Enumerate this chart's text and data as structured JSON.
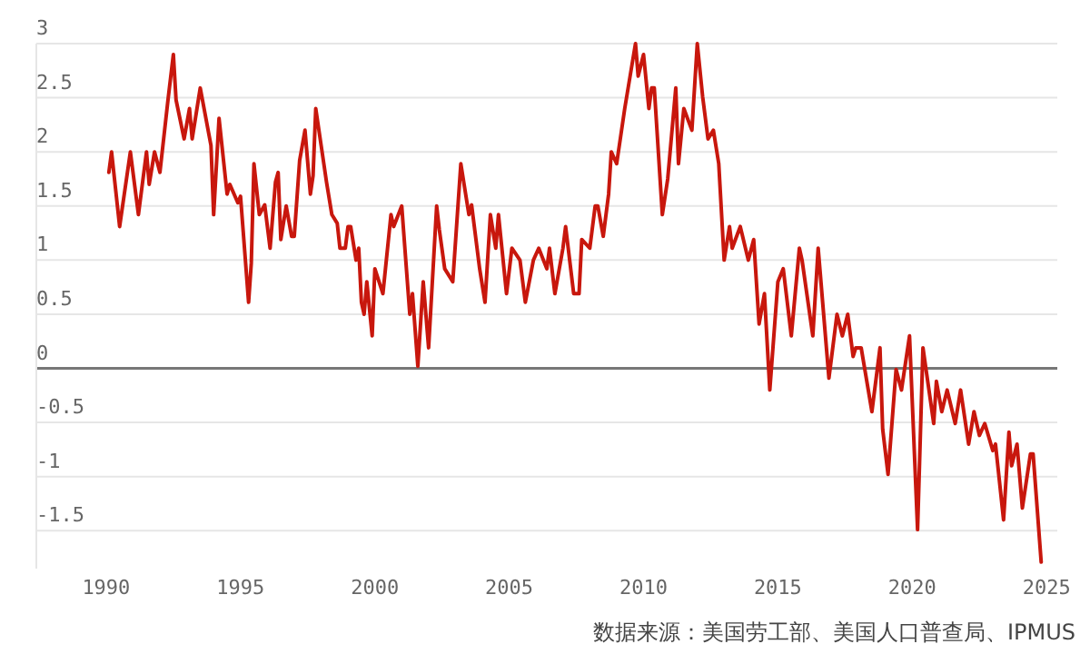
{
  "chart_data": {
    "type": "line",
    "x": [
      1990.1,
      1990.2,
      1990.5,
      1990.9,
      1991.2,
      1991.5,
      1991.6,
      1991.8,
      1992.0,
      1992.3,
      1992.5,
      1992.6,
      1992.9,
      1993.1,
      1993.2,
      1993.5,
      1993.9,
      1994.0,
      1994.2,
      1994.5,
      1994.6,
      1994.9,
      1995.0,
      1995.3,
      1995.4,
      1995.5,
      1995.7,
      1995.9,
      1996.1,
      1996.3,
      1996.4,
      1996.5,
      1996.7,
      1996.9,
      1997.0,
      1997.2,
      1997.4,
      1997.6,
      1997.7,
      1997.8,
      1998.0,
      1998.2,
      1998.4,
      1998.6,
      1998.7,
      1998.9,
      1999.0,
      1999.1,
      1999.3,
      1999.4,
      1999.5,
      1999.6,
      1999.7,
      1999.9,
      2000.0,
      2000.3,
      2000.6,
      2000.7,
      2001.0,
      2001.3,
      2001.4,
      2001.6,
      2001.8,
      2002.0,
      2002.3,
      2002.4,
      2002.6,
      2002.9,
      2003.2,
      2003.5,
      2003.6,
      2003.9,
      2004.1,
      2004.3,
      2004.5,
      2004.6,
      2004.9,
      2005.1,
      2005.4,
      2005.6,
      2005.9,
      2006.1,
      2006.4,
      2006.5,
      2006.7,
      2007.0,
      2007.1,
      2007.4,
      2007.6,
      2007.7,
      2008.0,
      2008.2,
      2008.3,
      2008.5,
      2008.7,
      2008.8,
      2009.0,
      2009.3,
      2009.7,
      2009.8,
      2010.0,
      2010.2,
      2010.3,
      2010.4,
      2010.7,
      2010.9,
      2011.2,
      2011.3,
      2011.5,
      2011.8,
      2012.0,
      2012.2,
      2012.4,
      2012.6,
      2012.8,
      2013.0,
      2013.2,
      2013.3,
      2013.6,
      2013.9,
      2014.1,
      2014.3,
      2014.5,
      2014.7,
      2015.0,
      2015.2,
      2015.5,
      2015.8,
      2015.9,
      2016.3,
      2016.5,
      2016.9,
      2017.2,
      2017.4,
      2017.6,
      2017.8,
      2017.9,
      2018.1,
      2018.5,
      2018.8,
      2018.9,
      2019.1,
      2019.4,
      2019.6,
      2019.9,
      2020.2,
      2020.4,
      2020.8,
      2020.9,
      2021.1,
      2021.3,
      2021.6,
      2021.8,
      2022.1,
      2022.3,
      2022.5,
      2022.7,
      2023.0,
      2023.1,
      2023.4,
      2023.6,
      2023.7,
      2023.9,
      2024.1,
      2024.4,
      2024.5,
      2024.8
    ],
    "values": [
      1.81,
      2.0,
      1.31,
      2.0,
      1.42,
      2.0,
      1.7,
      2.0,
      1.81,
      2.48,
      2.9,
      2.48,
      2.12,
      2.4,
      2.12,
      2.59,
      2.06,
      1.42,
      2.31,
      1.61,
      1.7,
      1.53,
      1.59,
      0.61,
      0.97,
      1.89,
      1.42,
      1.51,
      1.11,
      1.72,
      1.81,
      1.19,
      1.5,
      1.22,
      1.22,
      1.92,
      2.2,
      1.61,
      1.78,
      2.4,
      2.06,
      1.72,
      1.42,
      1.34,
      1.11,
      1.11,
      1.31,
      1.31,
      1.0,
      1.11,
      0.61,
      0.5,
      0.8,
      0.3,
      0.92,
      0.69,
      1.42,
      1.31,
      1.5,
      0.5,
      0.69,
      0.02,
      0.8,
      0.19,
      1.5,
      1.28,
      0.92,
      0.8,
      1.89,
      1.42,
      1.51,
      0.92,
      0.61,
      1.42,
      1.11,
      1.42,
      0.69,
      1.11,
      1.0,
      0.61,
      1.0,
      1.11,
      0.92,
      1.11,
      0.69,
      1.11,
      1.31,
      0.69,
      0.69,
      1.19,
      1.11,
      1.5,
      1.5,
      1.22,
      1.61,
      2.0,
      1.89,
      2.4,
      3.0,
      2.7,
      2.9,
      2.4,
      2.59,
      2.59,
      1.42,
      1.75,
      2.59,
      1.89,
      2.4,
      2.2,
      3.0,
      2.51,
      2.12,
      2.2,
      1.89,
      1.0,
      1.31,
      1.11,
      1.31,
      1.0,
      1.19,
      0.41,
      0.69,
      -0.2,
      0.8,
      0.92,
      0.3,
      1.11,
      1.0,
      0.3,
      1.11,
      -0.09,
      0.5,
      0.3,
      0.5,
      0.11,
      0.19,
      0.19,
      -0.4,
      0.19,
      -0.56,
      -0.98,
      -0.01,
      -0.2,
      0.3,
      -1.49,
      0.19,
      -0.51,
      -0.12,
      -0.4,
      -0.2,
      -0.51,
      -0.2,
      -0.7,
      -0.4,
      -0.62,
      -0.51,
      -0.76,
      -0.7,
      -1.4,
      -0.59,
      -0.9,
      -0.7,
      -1.29,
      -0.79,
      -0.79,
      -1.79
    ],
    "color": "#c8170d",
    "xlim": [
      1987.4,
      2025.4
    ],
    "xticks": [
      1990,
      1995,
      2000,
      2005,
      2010,
      2015,
      2020,
      2025
    ],
    "ylim": [
      -1.85,
      3
    ],
    "yticks": [
      -1.5,
      -1,
      -0.5,
      0,
      0.5,
      1,
      1.5,
      2,
      2.5,
      3
    ],
    "grid": "y",
    "marker": "none",
    "line_style": "solid",
    "annotations": [
      "数据来源：美国劳工部、美国人口普查局、IPMUS"
    ]
  }
}
